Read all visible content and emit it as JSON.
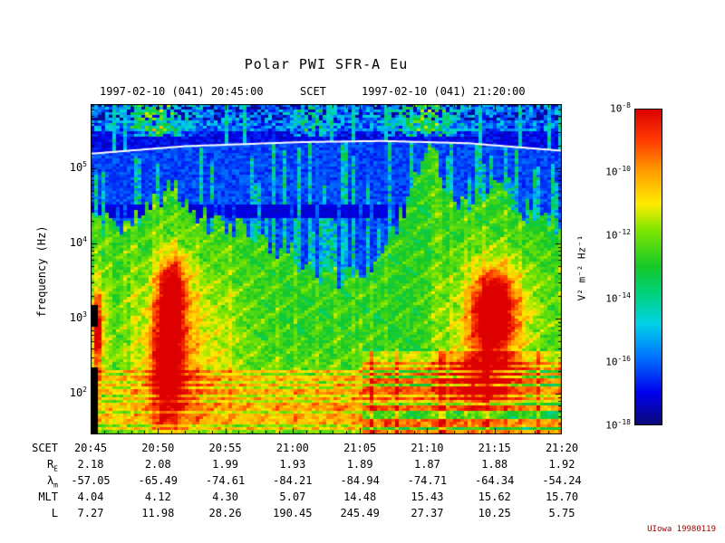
{
  "title": "Polar PWI SFR-A Eu",
  "header": {
    "start_label": "1997-02-10 (041) 20:45:00",
    "scet_label": "SCET",
    "end_label": "1997-02-10 (041) 21:20:00"
  },
  "y_axis": {
    "label": "frequency (Hz)",
    "tick_exponents": [
      2,
      3,
      4,
      5
    ],
    "log10_range": [
      1.46,
      5.85
    ]
  },
  "x_axis": {
    "minutes_span": 35,
    "major_tick_every_min": 5,
    "tick_labels": [
      "20:45",
      "20:50",
      "20:55",
      "21:00",
      "21:05",
      "21:10",
      "21:15",
      "21:20"
    ]
  },
  "colorbar": {
    "unit_label": "V² m⁻² Hz⁻¹",
    "tick_exponents": [
      -8,
      -10,
      -12,
      -14,
      -16,
      -18
    ],
    "log10_range": [
      -18,
      -8
    ],
    "colormap": [
      {
        "p": 0.0,
        "c": "#0a0a78"
      },
      {
        "p": 0.1,
        "c": "#0000ee"
      },
      {
        "p": 0.22,
        "c": "#0078ff"
      },
      {
        "p": 0.32,
        "c": "#00d2e6"
      },
      {
        "p": 0.42,
        "c": "#00d278"
      },
      {
        "p": 0.5,
        "c": "#14c828"
      },
      {
        "p": 0.62,
        "c": "#82e600"
      },
      {
        "p": 0.7,
        "c": "#ffeb00"
      },
      {
        "p": 0.8,
        "c": "#ffa000"
      },
      {
        "p": 0.9,
        "c": "#ff3c00"
      },
      {
        "p": 1.0,
        "c": "#dc0000"
      }
    ]
  },
  "ephemeris": {
    "rows": [
      {
        "label": "SCET",
        "sub": "",
        "values": [
          "20:45",
          "20:50",
          "20:55",
          "21:00",
          "21:05",
          "21:10",
          "21:15",
          "21:20"
        ]
      },
      {
        "label": "R",
        "sub": "E",
        "values": [
          "2.18",
          "2.08",
          "1.99",
          "1.93",
          "1.89",
          "1.87",
          "1.88",
          "1.92"
        ]
      },
      {
        "label": "λ",
        "sub": "m",
        "values": [
          "-57.05",
          "-65.49",
          "-74.61",
          "-84.21",
          "-84.94",
          "-74.71",
          "-64.34",
          "-54.24"
        ]
      },
      {
        "label": "MLT",
        "sub": "",
        "values": [
          "4.04",
          "4.12",
          "4.30",
          "5.07",
          "14.48",
          "15.43",
          "15.62",
          "15.70"
        ]
      },
      {
        "label": "L",
        "sub": "",
        "values": [
          "7.27",
          "11.98",
          "28.26",
          "190.45",
          "245.49",
          "27.37",
          "10.25",
          "5.75"
        ]
      }
    ]
  },
  "credit": "UIowa 19980119",
  "chart_data": {
    "type": "heatmap",
    "title": "Polar PWI SFR-A Eu",
    "xlabel": "SCET",
    "ylabel": "frequency (Hz)",
    "x_range": [
      "1997-02-10 20:45:00",
      "1997-02-10 21:20:00"
    ],
    "x_ticks": [
      "20:45",
      "20:50",
      "20:55",
      "21:00",
      "21:05",
      "21:10",
      "21:15",
      "21:20"
    ],
    "y_scale": "log",
    "y_range_hz": [
      26,
      700000
    ],
    "y_ticks_hz": [
      100,
      1000,
      10000,
      100000
    ],
    "z_units": "V² m⁻² Hz⁻¹",
    "z_range": [
      "1e-18",
      "1e-8"
    ],
    "legend_position": "right-colorbar",
    "grid": false,
    "overlay_line": {
      "name": "upper-hybrid-resonance-line",
      "color": "#ffffff",
      "points": [
        {
          "t": 0.0,
          "log10f": 5.19
        },
        {
          "t": 0.2,
          "log10f": 5.29
        },
        {
          "t": 0.45,
          "log10f": 5.345
        },
        {
          "t": 0.62,
          "log10f": 5.36
        },
        {
          "t": 0.8,
          "log10f": 5.33
        },
        {
          "t": 1.0,
          "log10f": 5.23
        }
      ]
    },
    "features": [
      {
        "name": "broad-emission-left",
        "t": 0.2,
        "log10f": 2.6,
        "st": 0.13,
        "sf": 1.2,
        "amp": 0.2
      },
      {
        "name": "intense-burst-left-low",
        "t": 0.165,
        "log10f": 2.5,
        "st": 0.035,
        "sf": 0.8,
        "amp": 0.5
      },
      {
        "name": "intense-burst-left-high",
        "t": 0.175,
        "log10f": 3.4,
        "st": 0.03,
        "sf": 0.45,
        "amp": 0.4
      },
      {
        "name": "intense-burst-right",
        "t": 0.855,
        "log10f": 3.1,
        "st": 0.04,
        "sf": 0.5,
        "amp": 0.55
      },
      {
        "name": "burst-right-low",
        "t": 0.83,
        "log10f": 2.2,
        "st": 0.06,
        "sf": 0.4,
        "amp": 0.3
      },
      {
        "name": "broad-emission-right",
        "t": 0.86,
        "log10f": 3.0,
        "st": 0.1,
        "sf": 0.8,
        "amp": 0.25
      },
      {
        "name": "bottom-band",
        "t": 0.55,
        "log10f": 1.9,
        "st": 0.25,
        "sf": 0.5,
        "amp": 0.12
      },
      {
        "name": "left-edge-streak",
        "t": 0.015,
        "log10f": 2.8,
        "st": 0.013,
        "sf": 0.6,
        "amp": 0.45
      }
    ],
    "approx_grid": {
      "time_labels": [
        "20:45",
        "20:50",
        "20:55",
        "21:00",
        "21:05",
        "21:10",
        "21:15",
        "21:20"
      ],
      "freq_bands_hz": [
        "30-100",
        "100-1k",
        "1k-10k",
        "10k-100k",
        "100k-700k"
      ],
      "log10_power": [
        [
          -13,
          -11,
          -12,
          -13,
          -13,
          -12,
          -11,
          -11
        ],
        [
          -12,
          -9,
          -13,
          -13,
          -13,
          -12,
          -10,
          -11
        ],
        [
          -13,
          -10,
          -13,
          -14,
          -13,
          -12,
          -9,
          -13
        ],
        [
          -16,
          -14,
          -16,
          -16,
          -16,
          -13,
          -14,
          -16
        ],
        [
          -17,
          -16,
          -17,
          -17,
          -17,
          -16,
          -17,
          -17
        ]
      ]
    }
  }
}
